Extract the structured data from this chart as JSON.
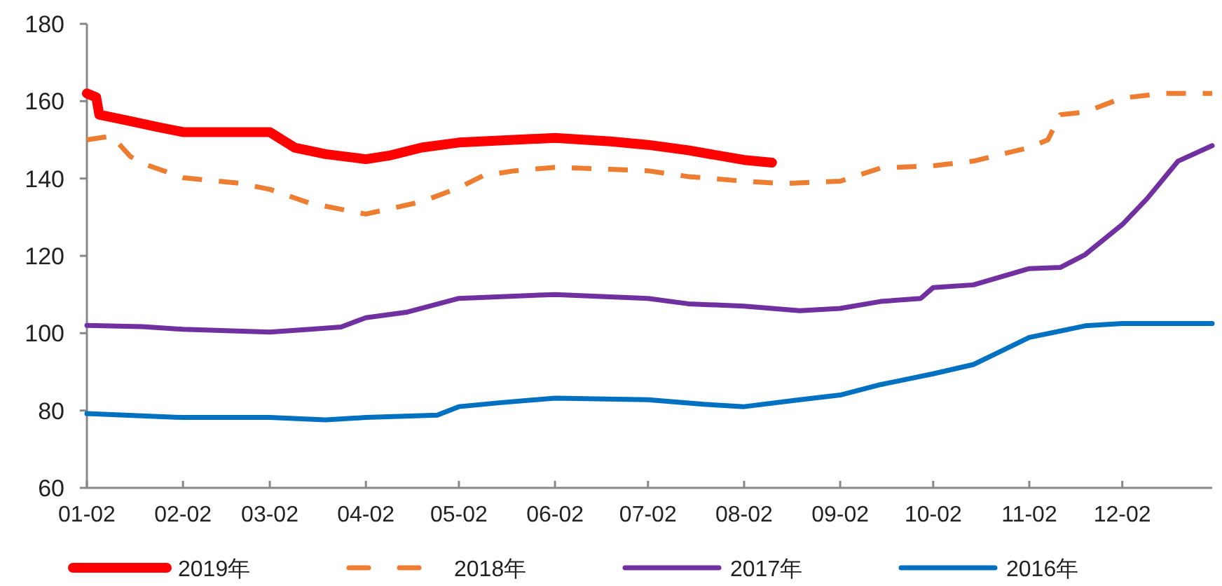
{
  "chart_data": {
    "type": "line",
    "legend": "bottom",
    "grid": false,
    "marker": "none",
    "xlim": [
      "--01-02",
      "--12-31"
    ],
    "xticks": [
      {
        "value": "--01-02",
        "label": "01-02"
      },
      {
        "value": "--02-02",
        "label": "02-02"
      },
      {
        "value": "--03-02",
        "label": "03-02"
      },
      {
        "value": "--04-02",
        "label": "04-02"
      },
      {
        "value": "--05-02",
        "label": "05-02"
      },
      {
        "value": "--06-02",
        "label": "06-02"
      },
      {
        "value": "--07-02",
        "label": "07-02"
      },
      {
        "value": "--08-02",
        "label": "08-02"
      },
      {
        "value": "--09-02",
        "label": "09-02"
      },
      {
        "value": "--10-02",
        "label": "10-02"
      },
      {
        "value": "--11-02",
        "label": "11-02"
      },
      {
        "value": "--12-02",
        "label": "12-02"
      }
    ],
    "ylim": [
      60,
      180
    ],
    "yticks": [
      60,
      80,
      100,
      120,
      140,
      160,
      180
    ],
    "series": [
      {
        "name": "2019年",
        "color": "#ff0000",
        "line_style": "solid",
        "x": [
          "--01-02",
          "--01-05",
          "--01-06",
          "--01-15",
          "--01-25",
          "--02-02",
          "--03-02",
          "--03-10",
          "--03-20",
          "--04-02",
          "--04-10",
          "--04-20",
          "--05-02",
          "--06-02",
          "--06-20",
          "--07-02",
          "--07-15",
          "--08-02",
          "--08-11"
        ],
        "values": [
          162,
          161,
          156.5,
          155,
          153.3,
          152,
          152,
          148,
          146.3,
          145,
          146,
          148,
          149.3,
          150.5,
          149.6,
          148.7,
          147.3,
          144.8,
          144.1
        ]
      },
      {
        "name": "2018年",
        "color": "#ed7d31",
        "line_style": "dashed",
        "x": [
          "--01-02",
          "--01-10",
          "--01-16",
          "--01-20",
          "--02-02",
          "--02-20",
          "--03-02",
          "--03-15",
          "--04-02",
          "--04-20",
          "--05-02",
          "--05-10",
          "--05-20",
          "--06-02",
          "--06-20",
          "--07-02",
          "--07-15",
          "--08-02",
          "--08-15",
          "--09-02",
          "--09-15",
          "--10-02",
          "--10-15",
          "--11-02",
          "--11-08",
          "--11-12",
          "--11-20",
          "--12-02",
          "--12-15",
          "--12-22",
          "--12-31"
        ],
        "values": [
          150,
          151,
          145.7,
          143.9,
          140.2,
          138.8,
          137.2,
          133.6,
          130.8,
          134,
          137.6,
          140.8,
          142,
          142.9,
          142.4,
          142,
          140.5,
          139.3,
          138.7,
          139.3,
          142.7,
          143.3,
          144.5,
          148,
          150,
          156.5,
          157.2,
          160.8,
          162,
          162,
          162
        ]
      },
      {
        "name": "2017年",
        "color": "#7030a0",
        "line_style": "solid",
        "x": [
          "--01-02",
          "--01-20",
          "--02-02",
          "--03-02",
          "--03-15",
          "--03-25",
          "--04-02",
          "--04-15",
          "--05-02",
          "--06-02",
          "--07-02",
          "--07-15",
          "--08-02",
          "--08-20",
          "--09-02",
          "--09-15",
          "--09-28",
          "--10-02",
          "--10-15",
          "--11-02",
          "--11-12",
          "--11-20",
          "--12-02",
          "--12-10",
          "--12-20",
          "--12-31"
        ],
        "values": [
          102,
          101.7,
          101,
          100.3,
          101,
          101.6,
          104,
          105.4,
          109,
          110,
          109,
          107.6,
          107,
          105.8,
          106.4,
          108.2,
          109,
          111.8,
          112.5,
          116.7,
          117,
          120.3,
          128.1,
          134.8,
          144.5,
          148.5
        ]
      },
      {
        "name": "2016年",
        "color": "#0070c0",
        "line_style": "solid",
        "x": [
          "--01-02",
          "--02-02",
          "--03-02",
          "--03-20",
          "--04-02",
          "--04-25",
          "--05-02",
          "--05-15",
          "--06-02",
          "--07-02",
          "--07-20",
          "--08-02",
          "--08-20",
          "--09-02",
          "--09-15",
          "--10-02",
          "--10-15",
          "--11-02",
          "--11-20",
          "--12-02",
          "--12-31"
        ],
        "values": [
          79.2,
          78.2,
          78.2,
          77.6,
          78.2,
          78.8,
          81,
          82,
          83.2,
          82.8,
          81.6,
          81,
          82.8,
          84,
          86.7,
          89.5,
          91.9,
          98.9,
          101.9,
          102.5,
          102.5
        ]
      }
    ]
  }
}
